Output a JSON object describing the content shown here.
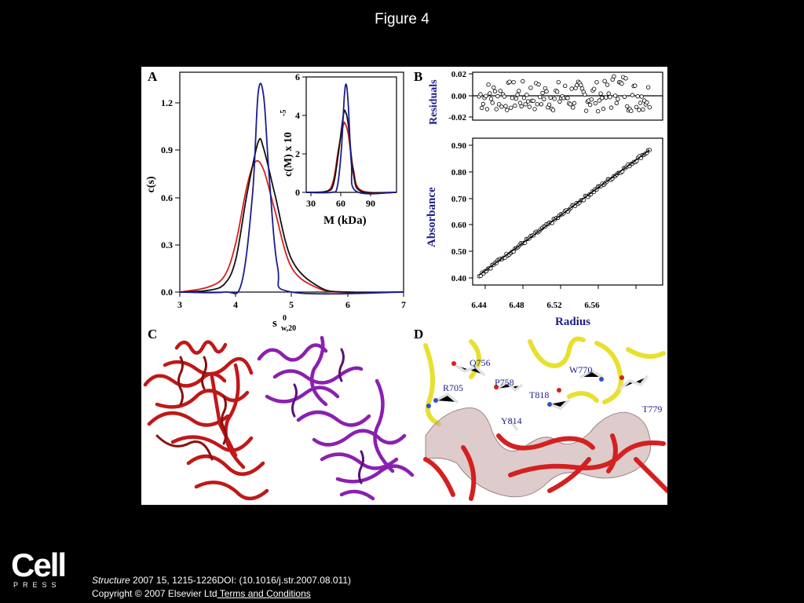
{
  "page": {
    "title": "Figure 4"
  },
  "panels": {
    "A": {
      "label": "A",
      "ylabel": "c(s)",
      "xlabel_main": "s",
      "xlabel_sup": "0",
      "xlabel_sub": "w,20",
      "xticks": [
        "3",
        "4",
        "5",
        "6",
        "7"
      ],
      "yticks": [
        "0.0",
        "0.3",
        "0.6",
        "0.9",
        "1.2"
      ],
      "inset": {
        "ylabel": "c(M) x 10",
        "ylabel_exp": "-5",
        "xlabel": "M (kDa)",
        "xticks": [
          "30",
          "60",
          "90"
        ],
        "yticks": [
          "0",
          "2",
          "4",
          "6"
        ]
      }
    },
    "B": {
      "label": "B",
      "top_ylabel": "Residuals",
      "bottom_ylabel": "Absorbance",
      "xlabel": "Radius",
      "top_yticks": [
        "0.02",
        "0.00",
        "-0.02"
      ],
      "bottom_yticks": [
        "0.40",
        "0.50",
        "0.60",
        "0.70",
        "0.80",
        "0.90"
      ],
      "xticks": [
        "6.44",
        "6.48",
        "6.52",
        "6.56"
      ]
    },
    "C": {
      "label": "C"
    },
    "D": {
      "label": "D",
      "residues": [
        "Q756",
        "R705",
        "P758",
        "W770",
        "T818",
        "T779",
        "Y814"
      ]
    }
  },
  "chart_data": [
    {
      "type": "line",
      "panel": "A",
      "xlabel": "s w,20 0",
      "ylabel": "c(s)",
      "xlim": [
        3,
        7
      ],
      "ylim": [
        0,
        1.35
      ],
      "series": [
        {
          "color": "#d42020",
          "x": [
            3.0,
            3.5,
            3.8,
            4.0,
            4.2,
            4.35,
            4.5,
            4.7,
            5.0,
            5.5,
            6.0,
            7.0
          ],
          "values": [
            0.0,
            0.03,
            0.1,
            0.3,
            0.65,
            0.8,
            0.75,
            0.5,
            0.15,
            0.02,
            0.0,
            0.0
          ]
        },
        {
          "color": "#111111",
          "x": [
            3.0,
            3.5,
            3.8,
            4.0,
            4.2,
            4.4,
            4.5,
            4.7,
            5.0,
            5.5,
            6.0,
            7.0
          ],
          "values": [
            0.0,
            0.01,
            0.05,
            0.2,
            0.6,
            0.92,
            0.88,
            0.6,
            0.2,
            0.03,
            0.0,
            0.0
          ]
        },
        {
          "color": "#1c1c8c",
          "x": [
            3.0,
            3.8,
            4.1,
            4.3,
            4.4,
            4.5,
            4.6,
            4.75,
            5.0,
            7.0
          ],
          "values": [
            0.0,
            0.0,
            0.05,
            0.6,
            1.22,
            1.2,
            0.7,
            0.15,
            0.0,
            0.0
          ]
        }
      ]
    },
    {
      "type": "line",
      "panel": "A-inset",
      "xlabel": "M (kDa)",
      "ylabel": "c(M) x 10 -5",
      "xlim": [
        25,
        115
      ],
      "ylim": [
        0,
        6
      ],
      "series": [
        {
          "color": "#d42020",
          "x": [
            25,
            45,
            52,
            57,
            62,
            64,
            67,
            72,
            80,
            115
          ],
          "values": [
            0,
            0.05,
            0.6,
            2.2,
            3.5,
            3.55,
            3.0,
            1.2,
            0.1,
            0
          ]
        },
        {
          "color": "#111111",
          "x": [
            25,
            45,
            52,
            57,
            62,
            64,
            67,
            72,
            80,
            115
          ],
          "values": [
            0,
            0.05,
            0.4,
            2.0,
            4.0,
            4.2,
            3.5,
            1.0,
            0.05,
            0
          ]
        },
        {
          "color": "#1c1c8c",
          "x": [
            25,
            50,
            56,
            60,
            63,
            65,
            67,
            70,
            75,
            115
          ],
          "values": [
            0,
            0,
            0.3,
            2.2,
            5.0,
            5.6,
            4.5,
            1.5,
            0.05,
            0
          ]
        }
      ]
    },
    {
      "type": "scatter",
      "panel": "B-top",
      "ylabel": "Residuals",
      "xlim": [
        6.43,
        6.575
      ],
      "ylim": [
        -0.025,
        0.025
      ]
    },
    {
      "type": "scatter",
      "panel": "B-bottom",
      "xlabel": "Radius",
      "ylabel": "Absorbance",
      "xlim": [
        6.43,
        6.575
      ],
      "ylim": [
        0.39,
        0.91
      ],
      "x": [
        6.435,
        6.565
      ],
      "values": [
        0.425,
        0.868
      ]
    }
  ],
  "footer": {
    "logo_word": "Cell",
    "logo_press": "PRESS",
    "journal": "Structure",
    "citation": " 2007 15, 1215-1226DOI: (10.1016/j.str.2007.08.011)",
    "copyright": "Copyright © 2007 Elsevier Ltd",
    "terms_link": " Terms and Conditions"
  }
}
